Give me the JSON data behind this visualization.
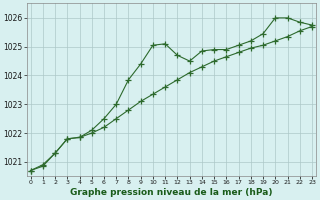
{
  "series1": {
    "x": [
      0,
      1,
      2,
      3,
      4,
      5,
      6,
      7,
      8,
      9,
      10,
      11,
      12,
      13,
      14,
      15,
      16,
      17,
      18,
      19,
      20,
      21,
      22,
      23
    ],
    "y": [
      1020.7,
      1020.9,
      1021.3,
      1021.8,
      1021.85,
      1022.1,
      1022.5,
      1023.0,
      1023.85,
      1024.4,
      1025.05,
      1025.1,
      1024.7,
      1024.5,
      1024.85,
      1024.9,
      1024.9,
      1025.05,
      1025.2,
      1025.45,
      1026.0,
      1026.0,
      1025.85,
      1025.75
    ]
  },
  "series2": {
    "x": [
      0,
      1,
      2,
      3,
      4,
      5,
      6,
      7,
      8,
      9,
      10,
      11,
      12,
      13,
      14,
      15,
      16,
      17,
      18,
      19,
      20,
      21,
      22,
      23
    ],
    "y": [
      1020.7,
      1020.85,
      1021.3,
      1021.8,
      1021.85,
      1022.0,
      1022.2,
      1022.5,
      1022.8,
      1023.1,
      1023.35,
      1023.6,
      1023.85,
      1024.1,
      1024.3,
      1024.5,
      1024.65,
      1024.8,
      1024.95,
      1025.05,
      1025.2,
      1025.35,
      1025.55,
      1025.7
    ]
  },
  "line_color": "#2d6a2d",
  "bg_color": "#d8f0f0",
  "grid_color": "#adc8c8",
  "xlabel": "Graphe pression niveau de la mer (hPa)",
  "xlabel_color": "#1a5c1a",
  "ylim": [
    1020.5,
    1026.5
  ],
  "yticks": [
    1021,
    1022,
    1023,
    1024,
    1025,
    1026
  ],
  "xtick_labels": [
    "0",
    "1",
    "2",
    "3",
    "4",
    "5",
    "6",
    "7",
    "8",
    "9",
    "10",
    "11",
    "12",
    "13",
    "14",
    "15",
    "16",
    "17",
    "18",
    "19",
    "20",
    "21",
    "22",
    "23"
  ],
  "marker_size": 4,
  "line_width": 0.8
}
